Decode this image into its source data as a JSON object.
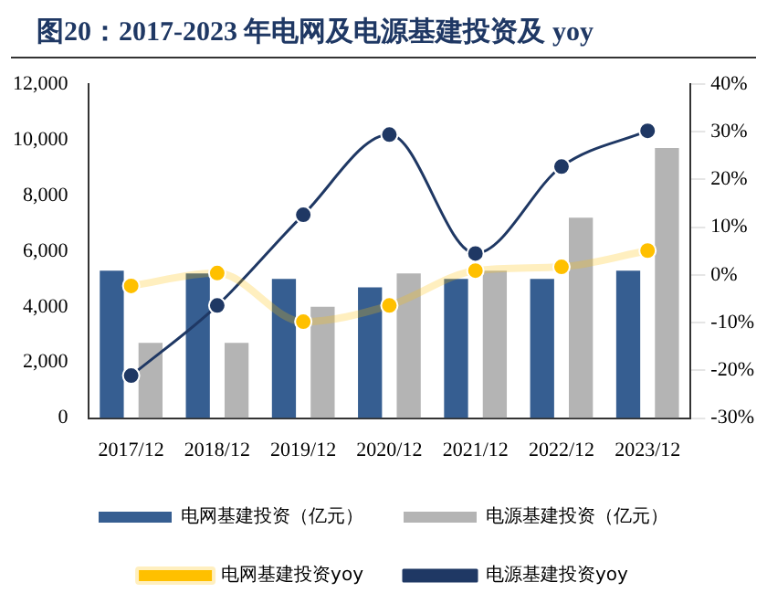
{
  "chart_data": {
    "type": "bar",
    "title": "图20：2017-2023 年电网及电源基建投资及 yoy",
    "categories": [
      "2017/12",
      "2018/12",
      "2019/12",
      "2020/12",
      "2021/12",
      "2022/12",
      "2023/12"
    ],
    "series": [
      {
        "name": "电网基建投资（亿元）",
        "color": "#365e91",
        "values": [
          5300,
          5200,
          5000,
          4700,
          5000,
          5000,
          5300
        ]
      },
      {
        "name": "电源基建投资（亿元）",
        "color": "#b4b4b4",
        "values": [
          2700,
          2700,
          4000,
          5200,
          5300,
          7200,
          9700
        ]
      },
      {
        "name": "电网基建投资yoy",
        "type": "line",
        "axis": "y2",
        "color": "#ffc000",
        "values": [
          -2.3,
          0.4,
          -9.8,
          -6.4,
          0.9,
          1.7,
          5.1
        ]
      },
      {
        "name": "电源基建投资yoy",
        "type": "line",
        "axis": "y2",
        "color": "#1f3864",
        "values": [
          -21.1,
          -6.4,
          12.6,
          29.4,
          4.5,
          22.7,
          30.2
        ]
      }
    ],
    "ylim": [
      0,
      12000
    ],
    "yticks": [
      {
        "value": 0,
        "label": "0"
      },
      {
        "value": 2000,
        "label": "2,000"
      },
      {
        "value": 4000,
        "label": "4,000"
      },
      {
        "value": 6000,
        "label": "6,000"
      },
      {
        "value": 8000,
        "label": "8,000"
      },
      {
        "value": 10000,
        "label": "10,000"
      },
      {
        "value": 12000,
        "label": "12,000"
      }
    ],
    "y2lim": [
      -30,
      40
    ],
    "y2ticks": [
      {
        "value": -30,
        "label": "-30%"
      },
      {
        "value": -20,
        "label": "-20%"
      },
      {
        "value": -10,
        "label": "-10%"
      },
      {
        "value": 0,
        "label": "0%"
      },
      {
        "value": 10,
        "label": "10%"
      },
      {
        "value": 20,
        "label": "20%"
      },
      {
        "value": 30,
        "label": "30%"
      },
      {
        "value": 40,
        "label": "40%"
      }
    ],
    "grid": false,
    "legend": "bottom",
    "marker": "circle"
  }
}
